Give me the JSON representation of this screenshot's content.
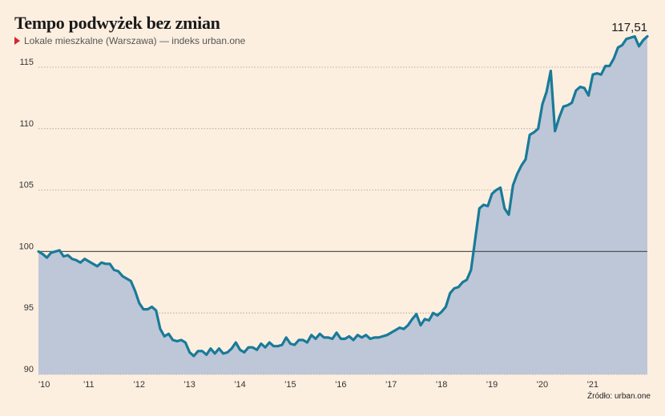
{
  "header": {
    "title": "Tempo podwyżek bez zmian",
    "subtitle": "Lokale mieszkalne (Warszawa) — indeks urban.one"
  },
  "footer": {
    "source": "Źródło: urban.one"
  },
  "colors": {
    "background": "#fdefe0",
    "line": "#1a7a99",
    "area": "#bdc7d7",
    "baseline": "#555555",
    "bullet": "#d7262a"
  },
  "chart_data": {
    "type": "area",
    "title": "Tempo podwyżek bez zmian",
    "subtitle": "Lokale mieszkalne (Warszawa) — indeks urban.one",
    "xlabel": "",
    "ylabel": "",
    "ylim": [
      90,
      118.5
    ],
    "yticks": [
      90,
      95,
      100,
      105,
      110,
      115
    ],
    "ytick_labels": [
      "90",
      "95",
      "100",
      "105",
      "110",
      "115"
    ],
    "xticks": [
      2010,
      2011,
      2012,
      2013,
      2014,
      2015,
      2016,
      2017,
      2018,
      2019,
      2020,
      2021
    ],
    "xtick_labels": [
      "'10",
      "'11",
      "'12",
      "'13",
      "'14",
      "'15",
      "'16",
      "'17",
      "'18",
      "'19",
      "'20",
      "'21"
    ],
    "reference_line": 100,
    "end_label": "117,51",
    "grid": "horizontal-dotted",
    "series": [
      {
        "x_start": 2010,
        "step": "monthly",
        "values": [
          100.0,
          99.8,
          99.5,
          99.9,
          100.0,
          100.1,
          99.6,
          99.7,
          99.4,
          99.3,
          99.1,
          99.4,
          99.2,
          99.0,
          98.8,
          99.1,
          99.0,
          99.0,
          98.5,
          98.4,
          98.0,
          97.8,
          97.6,
          96.8,
          95.8,
          95.3,
          95.3,
          95.5,
          95.2,
          93.7,
          93.1,
          93.3,
          92.8,
          92.7,
          92.8,
          92.6,
          91.8,
          91.5,
          91.9,
          91.9,
          91.6,
          92.1,
          91.7,
          92.1,
          91.7,
          91.8,
          92.1,
          92.6,
          92.0,
          91.8,
          92.2,
          92.2,
          92.0,
          92.5,
          92.2,
          92.6,
          92.3,
          92.3,
          92.4,
          93.0,
          92.5,
          92.4,
          92.8,
          92.8,
          92.6,
          93.2,
          92.9,
          93.3,
          93.0,
          93.0,
          92.9,
          93.4,
          92.9,
          92.9,
          93.1,
          92.8,
          93.2,
          93.0,
          93.2,
          92.9,
          93.0,
          93.0,
          93.1,
          93.2,
          93.4,
          93.6,
          93.8,
          93.7,
          94.0,
          94.5,
          94.9,
          94.0,
          94.5,
          94.4,
          95.0,
          94.8,
          95.1,
          95.5,
          96.6,
          97.0,
          97.1,
          97.5,
          97.7,
          98.5,
          101.0,
          103.5,
          103.8,
          103.7,
          104.7,
          105.0,
          105.2,
          103.5,
          103.0,
          105.4,
          106.3,
          107.0,
          107.5,
          109.5,
          109.7,
          110.0,
          112.0,
          113.0,
          114.7,
          109.8,
          110.9,
          111.8,
          111.9,
          112.1,
          113.1,
          113.4,
          113.3,
          112.7,
          114.4,
          114.5,
          114.4,
          115.1,
          115.1,
          115.7,
          116.6,
          116.8,
          117.3,
          117.4,
          117.5,
          116.7,
          117.2,
          117.51
        ]
      }
    ]
  }
}
